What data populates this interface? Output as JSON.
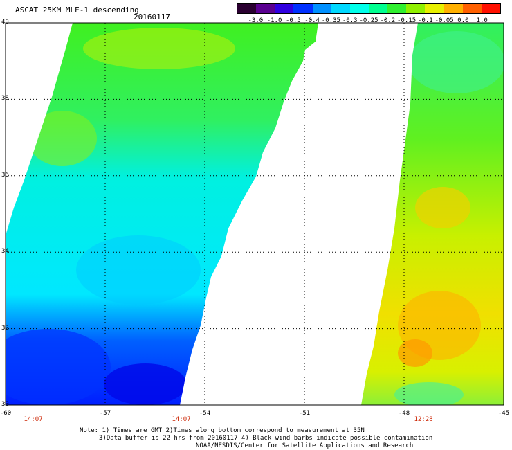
{
  "header": {
    "title": "ASCAT 25KM MLE-1 descending",
    "date": "20160117"
  },
  "colorbar": {
    "colors": [
      "#2a0030",
      "#5a0090",
      "#3000e0",
      "#0030ff",
      "#0090ff",
      "#00d8ff",
      "#00ffea",
      "#00ff90",
      "#30f030",
      "#90f000",
      "#e8f000",
      "#ffb000",
      "#ff6000",
      "#ff1000"
    ],
    "labels": [
      "-3.0",
      "-1.0",
      "-0.5",
      "-0.4",
      "-0.35",
      "-0.3",
      "-0.25",
      "-0.2",
      "-0.15",
      "-0.1",
      "-0.05",
      "0.0",
      "1.0"
    ]
  },
  "map": {
    "lon_range": [
      -60,
      -45
    ],
    "lat_range": [
      30,
      40
    ],
    "lat_labels": [
      "40",
      "38",
      "36",
      "34",
      "32",
      "30"
    ],
    "lon_labels": [
      "-60",
      "-57",
      "-54",
      "-51",
      "-48",
      "-45"
    ],
    "time_labels": [
      "14:07",
      "14:07",
      "12:28"
    ]
  },
  "notes": {
    "line1": "Note: 1) Times are GMT 2)Times along bottom correspond to measurement at 35N",
    "line2": "3)Data buffer is 22 hrs from 20160117 4) Black wind barbs indicate possible contamination",
    "line3": "NOAA/NESDIS/Center for Satellite Applications and Research"
  }
}
